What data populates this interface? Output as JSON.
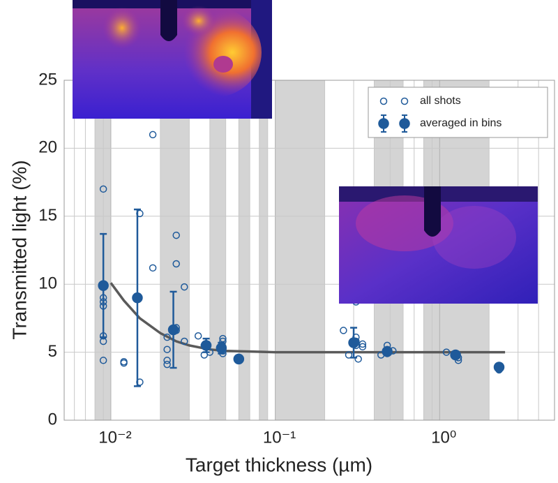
{
  "chart_data": {
    "type": "scatter",
    "xlabel": "Target thickness (µm)",
    "ylabel": "Transmitted light (%)",
    "xscale": "log",
    "xlim": [
      0.0052,
      5
    ],
    "ylim": [
      0,
      25
    ],
    "xticks": [
      {
        "value": 0.01,
        "label": "10⁻²"
      },
      {
        "value": 0.1,
        "label": "10⁻¹"
      },
      {
        "value": 1,
        "label": "10⁰"
      }
    ],
    "xminor": [
      0.006,
      0.007,
      0.008,
      0.009,
      0.02,
      0.03,
      0.04,
      0.05,
      0.06,
      0.07,
      0.08,
      0.09,
      0.2,
      0.3,
      0.4,
      0.5,
      0.6,
      0.7,
      0.8,
      0.9,
      2,
      3,
      4
    ],
    "yticks": [
      0,
      5,
      10,
      15,
      20,
      25
    ],
    "grid": true,
    "legend": "upper right",
    "shaded_bands": [
      [
        0.008,
        0.01
      ],
      [
        0.02,
        0.03
      ],
      [
        0.04,
        0.05
      ],
      [
        0.06,
        0.07
      ],
      [
        0.08,
        0.09
      ],
      [
        0.1,
        0.2
      ],
      [
        0.4,
        0.6
      ],
      [
        0.8,
        2
      ]
    ],
    "band_color": "#d4d4d4",
    "series": [
      {
        "name": "all shots",
        "color": "#1f5a9a",
        "marker": "open",
        "x": [
          0.009,
          0.009,
          0.009,
          0.009,
          0.009,
          0.009,
          0.009,
          0.012,
          0.012,
          0.015,
          0.015,
          0.018,
          0.018,
          0.022,
          0.022,
          0.022,
          0.022,
          0.025,
          0.025,
          0.025,
          0.025,
          0.028,
          0.028,
          0.034,
          0.037,
          0.037,
          0.04,
          0.048,
          0.048,
          0.048,
          0.048,
          0.048,
          0.26,
          0.28,
          0.31,
          0.31,
          0.31,
          0.31,
          0.32,
          0.34,
          0.34,
          0.44,
          0.48,
          0.48,
          0.48,
          0.52,
          1.1,
          1.3,
          1.3,
          2.3,
          2.3
        ],
        "values": [
          17,
          9.0,
          8.7,
          8.4,
          6.2,
          5.8,
          4.4,
          4.3,
          4.2,
          15.2,
          2.8,
          21,
          11.2,
          6.1,
          5.2,
          4.4,
          4.1,
          13.6,
          11.5,
          6.8,
          6.6,
          9.8,
          5.8,
          6.2,
          5.5,
          4.8,
          5.0,
          6.0,
          5.8,
          5.4,
          5.1,
          4.9,
          6.6,
          4.8,
          8.7,
          6.1,
          5.8,
          5.5,
          4.5,
          5.4,
          5.6,
          4.8,
          5.5,
          5.2,
          4.9,
          5.1,
          5.0,
          4.6,
          4.4,
          4.0,
          3.7
        ]
      },
      {
        "name": "averaged in bins",
        "color": "#1f5a9a",
        "marker": "filled",
        "x": [
          0.009,
          0.0145,
          0.024,
          0.038,
          0.047,
          0.06,
          0.3,
          0.48,
          1.25,
          2.3
        ],
        "values": [
          9.9,
          9.0,
          6.65,
          5.5,
          5.3,
          4.5,
          5.7,
          5.05,
          4.8,
          3.9
        ],
        "errors": [
          3.8,
          6.5,
          2.8,
          0.5,
          0.4,
          0,
          1.1,
          0.2,
          0.2,
          0.2
        ]
      }
    ],
    "fit": {
      "color": "#5a5a5a",
      "x": [
        0.01,
        0.012,
        0.015,
        0.02,
        0.025,
        0.03,
        0.04,
        0.05,
        0.07,
        0.1,
        0.2,
        0.5,
        1,
        2.5
      ],
      "values": [
        10.1,
        8.8,
        7.5,
        6.4,
        5.8,
        5.5,
        5.2,
        5.1,
        5.05,
        5.0,
        5.0,
        5.0,
        5.0,
        5.0
      ]
    }
  }
}
